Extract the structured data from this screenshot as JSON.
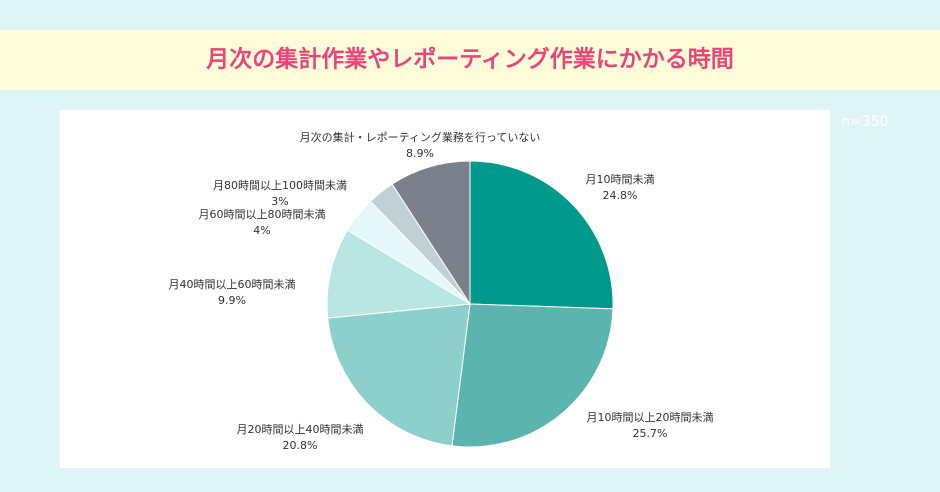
{
  "chart_data": {
    "type": "pie",
    "title": "月次の集計作業やレポーティング作業にかかる時間",
    "annotation": "n=350",
    "categories": [
      "月10時間未満",
      "月10時間以上20時間未満",
      "月20時間以上40時間未満",
      "月40時間以上60時間未満",
      "月60時間以上80時間未満",
      "月80時間以上100時間未満",
      "月次の集計・レポーティング業務を行っていない"
    ],
    "values": [
      24.8,
      25.7,
      20.8,
      9.9,
      4,
      3,
      8.9
    ],
    "value_labels": [
      "24.8%",
      "25.7%",
      "20.8%",
      "9.9%",
      "4%",
      "3%",
      "8.9%"
    ],
    "colors": [
      "#009a8c",
      "#5bb5ae",
      "#8ccfcb",
      "#b9e6e3",
      "#e4f8f9",
      "#c0d0d7",
      "#7a808c"
    ]
  }
}
